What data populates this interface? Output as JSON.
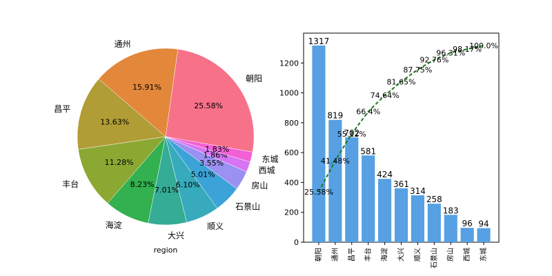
{
  "chart_data": [
    {
      "type": "pie",
      "xlabel": "region",
      "slices": [
        {
          "label": "朝阳",
          "pct": "25.58%",
          "value": 25.58,
          "color": "#f77189"
        },
        {
          "label": "通州",
          "pct": "15.91%",
          "value": 15.91,
          "color": "#e3873a"
        },
        {
          "label": "昌平",
          "pct": "13.63%",
          "value": 13.63,
          "color": "#b19d35"
        },
        {
          "label": "丰台",
          "pct": "11.28%",
          "value": 11.28,
          "color": "#8ba833"
        },
        {
          "label": "海淀",
          "pct": "8.23%",
          "value": 8.23,
          "color": "#33b04f"
        },
        {
          "label": "大兴",
          "pct": "7.01%",
          "value": 7.01,
          "color": "#35ac95"
        },
        {
          "label": "顺义",
          "pct": "6.10%",
          "value": 6.1,
          "color": "#37aabb"
        },
        {
          "label": "石景山",
          "pct": "5.01%",
          "value": 5.01,
          "color": "#3ba3d8"
        },
        {
          "label": "房山",
          "pct": "3.55%",
          "value": 3.55,
          "color": "#9a91f2"
        },
        {
          "label": "西城",
          "pct": "1.86%",
          "value": 1.86,
          "color": "#d674f3"
        },
        {
          "label": "东城",
          "pct": "1.83%",
          "value": 1.83,
          "color": "#f35fd6"
        }
      ]
    },
    {
      "type": "bar",
      "categories": [
        "朝阳",
        "通州",
        "昌平",
        "丰台",
        "海淀",
        "大兴",
        "顺义",
        "石景山",
        "房山",
        "西城",
        "东城"
      ],
      "values": [
        1317,
        819,
        702,
        581,
        424,
        361,
        314,
        258,
        183,
        96,
        94
      ],
      "bar_color": "#56a0e3",
      "ylim": [
        0,
        1400
      ],
      "yticks": [
        0,
        200,
        400,
        600,
        800,
        1000,
        1200
      ],
      "cumulative_labels": [
        "25.58%",
        "41.48%",
        "55.12%",
        "66.4%",
        "74.64%",
        "81.65%",
        "87.75%",
        "92.76%",
        "96.31%",
        "98.17%",
        "100.0%"
      ],
      "cumulative_pct": [
        25.58,
        41.48,
        55.12,
        66.4,
        74.64,
        81.65,
        87.75,
        92.76,
        96.31,
        98.17,
        100.0
      ],
      "line_color": "#1a7a1a",
      "line_style": "dashed"
    }
  ]
}
